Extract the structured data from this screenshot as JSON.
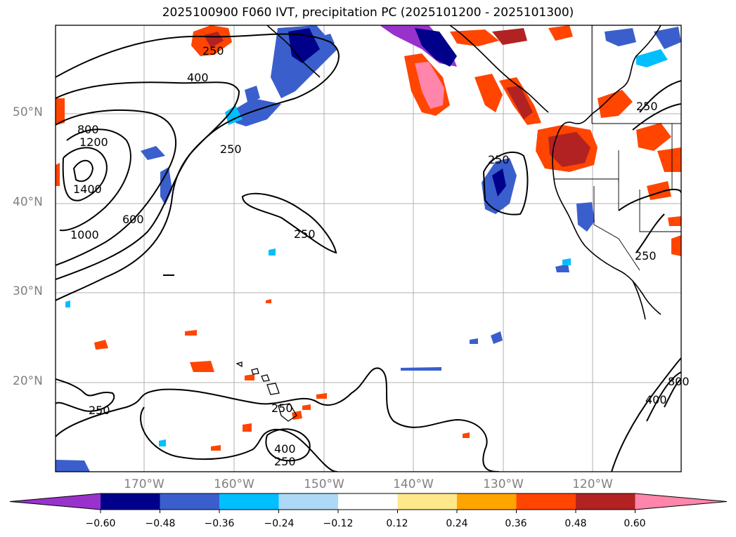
{
  "title": "2025100900 F060 IVT, precipitation PC (2025101200 - 2025101300)",
  "lat_labels": [
    "50°N",
    "40°N",
    "30°N",
    "20°N"
  ],
  "lon_labels": [
    "170°W",
    "160°W",
    "150°W",
    "140°W",
    "130°W",
    "120°W"
  ],
  "contour_labels": [
    "250",
    "400",
    "800",
    "1200",
    "1400",
    "1000",
    "600",
    "250",
    "250",
    "250",
    "250",
    "250",
    "250",
    "400",
    "250",
    "400",
    "800",
    "250"
  ],
  "colorbar": {
    "ticks": [
      "−0.60",
      "−0.48",
      "−0.36",
      "−0.24",
      "−0.12",
      "0.12",
      "0.24",
      "0.36",
      "0.48",
      "0.60"
    ],
    "colors": [
      "#9932cc",
      "#00008b",
      "#3a5fcd",
      "#00bfff",
      "#add8f6",
      "#ffffff",
      "#ffe88a",
      "#ffa500",
      "#ff4500",
      "#b22222",
      "#ff85aa"
    ]
  }
}
